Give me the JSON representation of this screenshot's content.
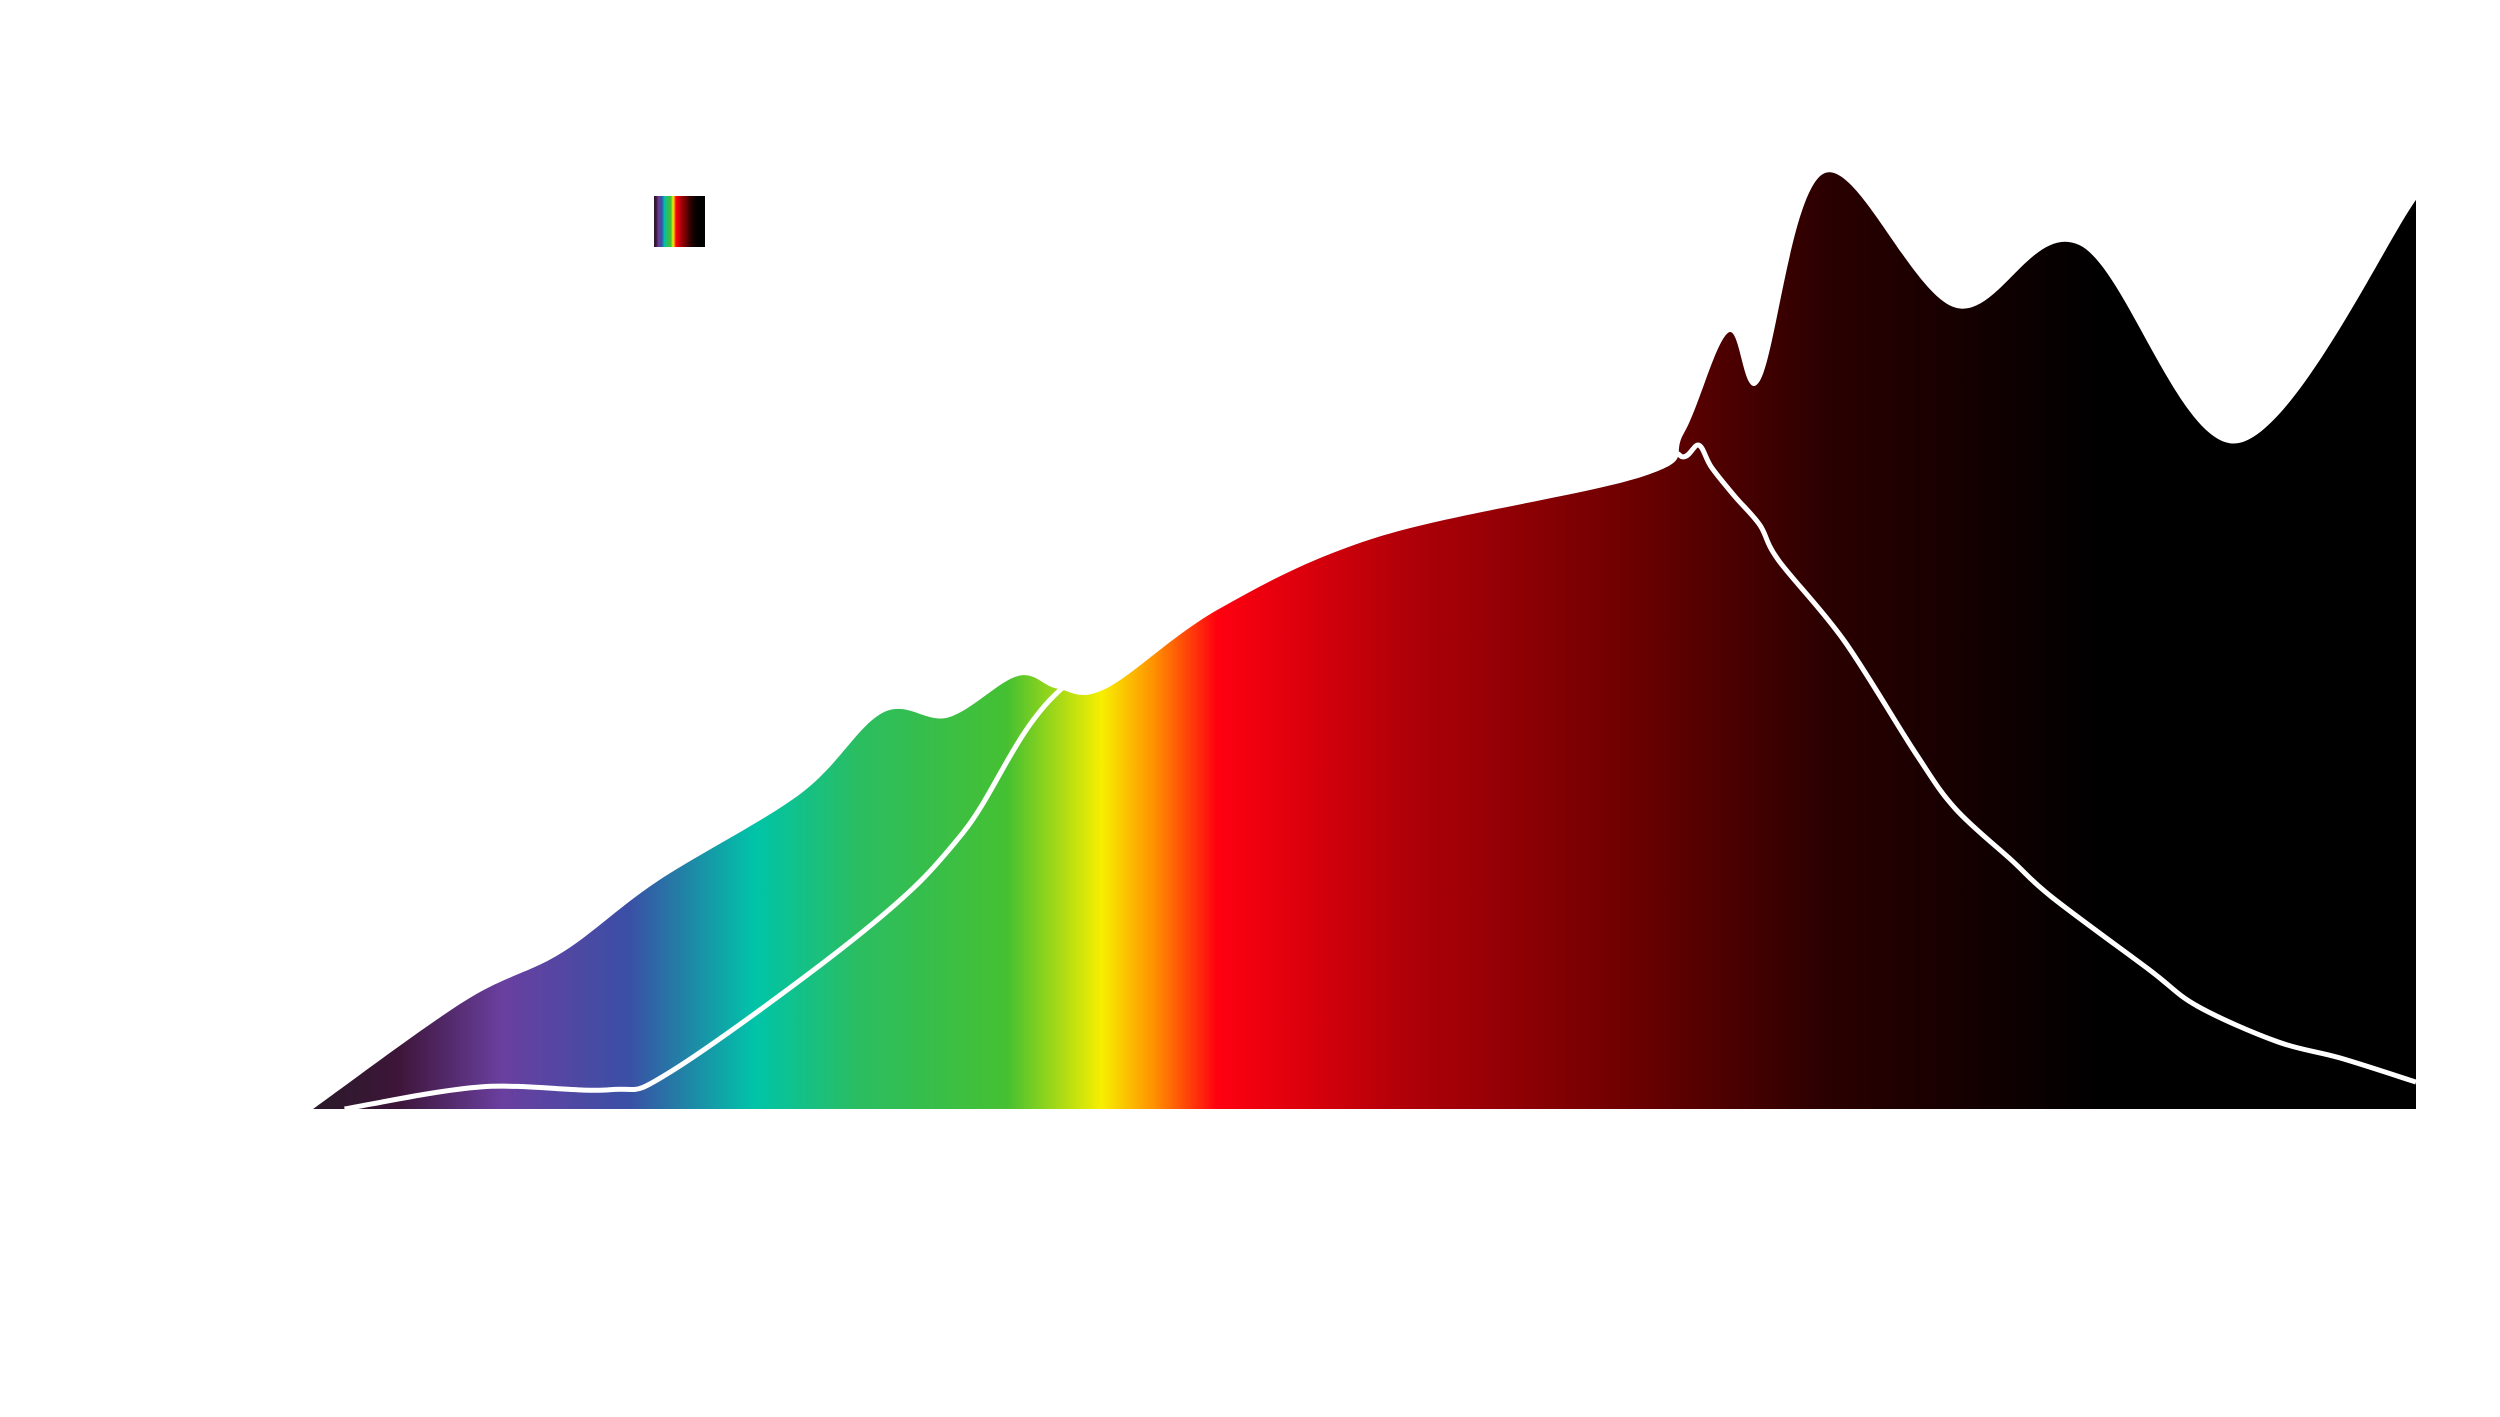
{
  "chart_data": {
    "type": "area",
    "xlim": [
      0,
      100
    ],
    "ylim": [
      0,
      100
    ],
    "grid": false,
    "legend": "upper left",
    "colorscale": [
      [
        0,
        "#2a1a2a"
      ],
      [
        4,
        "#3d1538"
      ],
      [
        9,
        "#6a3fa0"
      ],
      [
        15,
        "#3a4fa5"
      ],
      [
        21,
        "#00c4a8"
      ],
      [
        26,
        "#2bbd60"
      ],
      [
        33,
        "#45c032"
      ],
      [
        37.5,
        "#f7ef00"
      ],
      [
        40,
        "#ff9000"
      ],
      [
        43,
        "#ff0010"
      ],
      [
        52,
        "#b00008"
      ],
      [
        63,
        "#6a0000"
      ],
      [
        72,
        "#2a0000"
      ],
      [
        85,
        "#000000"
      ],
      [
        100,
        "#000000"
      ]
    ],
    "series": [
      {
        "kind": "area",
        "x": [
          0,
          7.2,
          11.8,
          16.4,
          23.2,
          27.1,
          30.2,
          33.5,
          35.4,
          37.7,
          43.1,
          50.7,
          63.3,
          65.2,
          67.3,
          68.8,
          71.9,
          78.1,
          84,
          91.5,
          100
        ],
        "values": [
          0,
          11.2,
          16.2,
          23.7,
          32.8,
          41.2,
          40.7,
          45,
          43.7,
          43.7,
          52,
          59.5,
          65.8,
          70.3,
          80.7,
          75.7,
          97.3,
          83.3,
          89.8,
          69.2,
          94.5
        ]
      },
      {
        "kind": "line",
        "color": "#ffffff",
        "x": [
          1.5,
          8,
          14.1,
          17.1,
          26.3,
          30.9,
          35.4,
          43.1,
          50.7,
          58.3,
          64,
          65.2,
          65.9,
          66.5,
          67.6,
          68.8,
          69.7,
          72.8,
          76.2,
          78.1,
          80.8,
          82.7,
          87.3,
          89.6,
          93.4,
          96.4,
          100
        ],
        "values": [
          0,
          2.3,
          2,
          4,
          18.7,
          28.7,
          43.3,
          53.7,
          62,
          66.2,
          68.3,
          67.8,
          69,
          66.7,
          63.7,
          60.7,
          57,
          48.7,
          37,
          31.2,
          25.8,
          22,
          14.5,
          10.7,
          7,
          5.3,
          2.8
        ]
      }
    ]
  }
}
